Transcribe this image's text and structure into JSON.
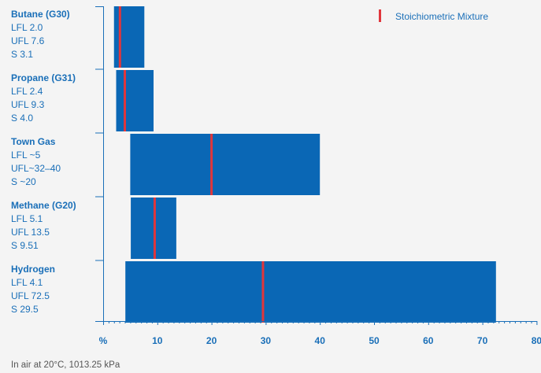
{
  "chart_data": {
    "type": "bar",
    "subtype": "horizontal range (floating) bars with marker",
    "xlim": [
      0,
      80
    ],
    "x_ticks_major": [
      10,
      20,
      30,
      40,
      50,
      60,
      70,
      80
    ],
    "x_unit_label": "%",
    "minor_tick_step": 1,
    "grid": false,
    "legend": {
      "placement": "top-right",
      "label": "Stoichiometric Mixture"
    },
    "colors": {
      "bar": "#0a67b5",
      "marker": "#e0363c",
      "text": "#1a6fb8",
      "axis": "#1a6fb8"
    },
    "series": [
      {
        "title": "Butane (G30)",
        "lines": [
          "LFL 2.0",
          "UFL 7.6",
          "S 3.1"
        ],
        "lfl": 2.0,
        "ufl": 7.6,
        "stoich": 3.1
      },
      {
        "title": "Propane (G31)",
        "lines": [
          "LFL 2.4",
          "UFL 9.3",
          "S 4.0"
        ],
        "lfl": 2.4,
        "ufl": 9.3,
        "stoich": 4.0
      },
      {
        "title": "Town Gas",
        "lines": [
          "LFL ~5",
          "UFL~32–40",
          "S ~20"
        ],
        "lfl": 5,
        "ufl": 40,
        "stoich": 20
      },
      {
        "title": "Methane (G20)",
        "lines": [
          "LFL 5.1",
          "UFL 13.5",
          "S 9.51"
        ],
        "lfl": 5.1,
        "ufl": 13.5,
        "stoich": 9.51
      },
      {
        "title": "Hydrogen",
        "lines": [
          "LFL 4.1",
          "UFL 72.5",
          "S 29.5"
        ],
        "lfl": 4.1,
        "ufl": 72.5,
        "stoich": 29.5
      }
    ]
  },
  "footnote": "In air at 20°C, 1013.25 kPa"
}
